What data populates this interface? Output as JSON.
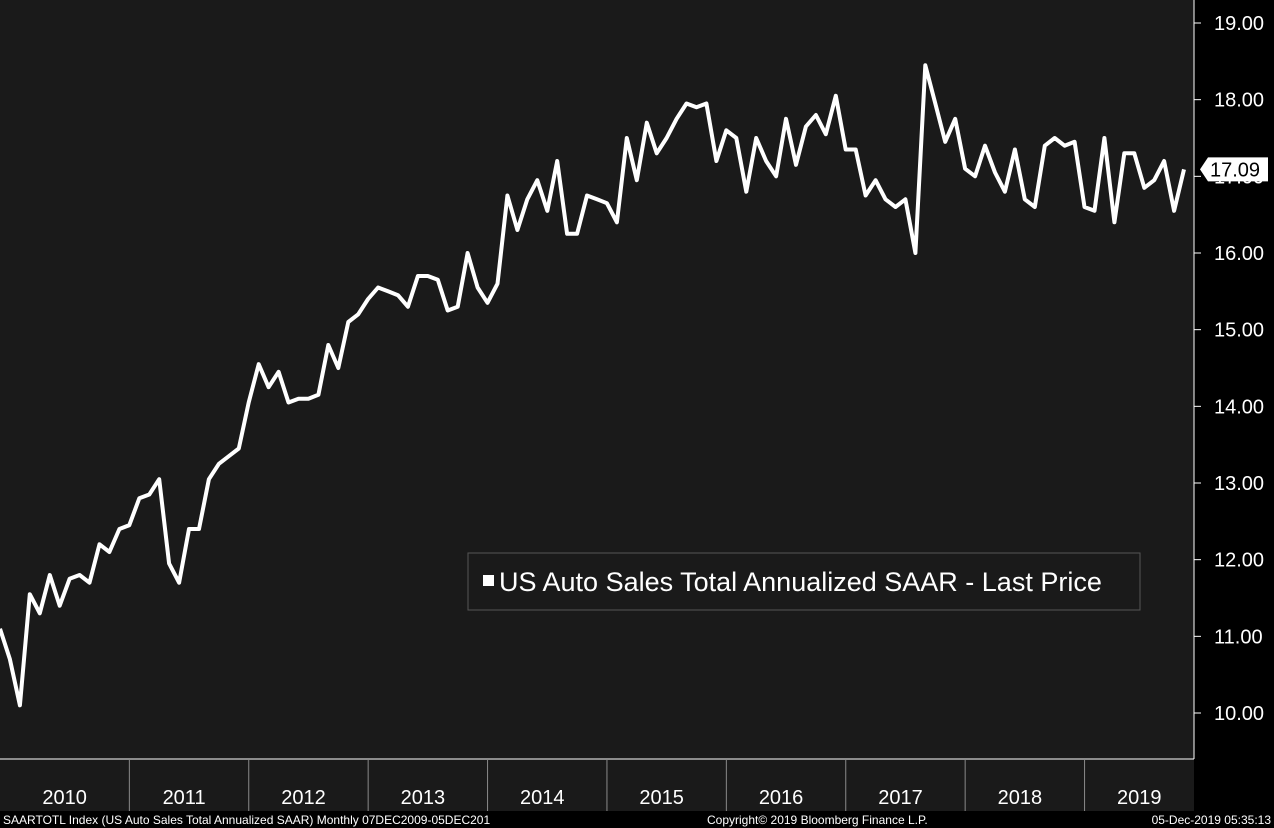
{
  "chart_data": {
    "type": "line",
    "title": "",
    "xlabel": "",
    "ylabel": "",
    "ylim": [
      9.4,
      19.3
    ],
    "xlim": [
      "2009-12",
      "2019-12"
    ],
    "y_ticks": [
      "10.00",
      "11.00",
      "12.00",
      "13.00",
      "14.00",
      "15.00",
      "16.00",
      "17.00",
      "18.00",
      "19.00"
    ],
    "x_year_labels": [
      "2010",
      "2011",
      "2012",
      "2013",
      "2014",
      "2015",
      "2016",
      "2017",
      "2018",
      "2019"
    ],
    "grid": false,
    "legend": {
      "placement": "center-right",
      "entry": "US Auto Sales Total Annualized SAAR - Last Price"
    },
    "last_value_label": "17.09",
    "series": [
      {
        "name": "US Auto Sales Total Annualized SAAR - Last Price",
        "color": "#ffffff",
        "x": [
          "2009-12",
          "2010-01",
          "2010-02",
          "2010-03",
          "2010-04",
          "2010-05",
          "2010-06",
          "2010-07",
          "2010-08",
          "2010-09",
          "2010-10",
          "2010-11",
          "2010-12",
          "2011-01",
          "2011-02",
          "2011-03",
          "2011-04",
          "2011-05",
          "2011-06",
          "2011-07",
          "2011-08",
          "2011-09",
          "2011-10",
          "2011-11",
          "2011-12",
          "2012-01",
          "2012-02",
          "2012-03",
          "2012-04",
          "2012-05",
          "2012-06",
          "2012-07",
          "2012-08",
          "2012-09",
          "2012-10",
          "2012-11",
          "2012-12",
          "2013-01",
          "2013-02",
          "2013-03",
          "2013-04",
          "2013-05",
          "2013-06",
          "2013-07",
          "2013-08",
          "2013-09",
          "2013-10",
          "2013-11",
          "2013-12",
          "2014-01",
          "2014-02",
          "2014-03",
          "2014-04",
          "2014-05",
          "2014-06",
          "2014-07",
          "2014-08",
          "2014-09",
          "2014-10",
          "2014-11",
          "2014-12",
          "2015-01",
          "2015-02",
          "2015-03",
          "2015-04",
          "2015-05",
          "2015-06",
          "2015-07",
          "2015-08",
          "2015-09",
          "2015-10",
          "2015-11",
          "2015-12",
          "2016-01",
          "2016-02",
          "2016-03",
          "2016-04",
          "2016-05",
          "2016-06",
          "2016-07",
          "2016-08",
          "2016-09",
          "2016-10",
          "2016-11",
          "2016-12",
          "2017-01",
          "2017-02",
          "2017-03",
          "2017-04",
          "2017-05",
          "2017-06",
          "2017-07",
          "2017-08",
          "2017-09",
          "2017-10",
          "2017-11",
          "2017-12",
          "2018-01",
          "2018-02",
          "2018-03",
          "2018-04",
          "2018-05",
          "2018-06",
          "2018-07",
          "2018-08",
          "2018-09",
          "2018-10",
          "2018-11",
          "2018-12",
          "2019-01",
          "2019-02",
          "2019-03",
          "2019-04",
          "2019-05",
          "2019-06",
          "2019-07",
          "2019-08",
          "2019-09",
          "2019-10",
          "2019-11"
        ],
        "values": [
          11.1,
          10.7,
          10.1,
          11.55,
          11.3,
          11.8,
          11.4,
          11.75,
          11.8,
          11.7,
          12.2,
          12.1,
          12.4,
          12.45,
          12.8,
          12.85,
          13.05,
          11.95,
          11.7,
          12.4,
          12.4,
          13.05,
          13.25,
          13.35,
          13.45,
          14.05,
          14.55,
          14.25,
          14.45,
          14.05,
          14.1,
          14.1,
          14.15,
          14.8,
          14.5,
          15.1,
          15.2,
          15.4,
          15.55,
          15.5,
          15.45,
          15.3,
          15.7,
          15.7,
          15.65,
          15.25,
          15.3,
          16.0,
          15.55,
          15.35,
          15.6,
          16.75,
          16.3,
          16.7,
          16.95,
          16.55,
          17.2,
          16.25,
          16.25,
          16.75,
          16.7,
          16.65,
          16.4,
          17.5,
          16.95,
          17.7,
          17.3,
          17.5,
          17.75,
          17.95,
          17.9,
          17.95,
          17.2,
          17.6,
          17.5,
          16.8,
          17.5,
          17.2,
          17.0,
          17.75,
          17.15,
          17.65,
          17.8,
          17.55,
          18.05,
          17.35,
          17.35,
          16.75,
          16.95,
          16.7,
          16.6,
          16.7,
          16.0,
          18.45,
          17.95,
          17.45,
          17.75,
          17.1,
          17.0,
          17.4,
          17.05,
          16.8,
          17.35,
          16.7,
          16.6,
          17.4,
          17.5,
          17.4,
          17.45,
          16.6,
          16.55,
          17.5,
          16.4,
          17.3,
          17.3,
          16.85,
          16.95,
          17.2,
          16.55,
          17.09
        ]
      }
    ]
  },
  "footer": {
    "left": "SAARTOTL Index (US Auto Sales Total Annualized SAAR)  Monthly 07DEC2009-05DEC201",
    "center": "Copyright© 2019 Bloomberg Finance L.P.",
    "right": "05-Dec-2019 05:35:13"
  },
  "colors": {
    "plot_bg": "#1a1a1a",
    "page_bg": "#000000",
    "line": "#ffffff",
    "legend_bg": "#1a1a1a",
    "legend_border": "#555555"
  }
}
